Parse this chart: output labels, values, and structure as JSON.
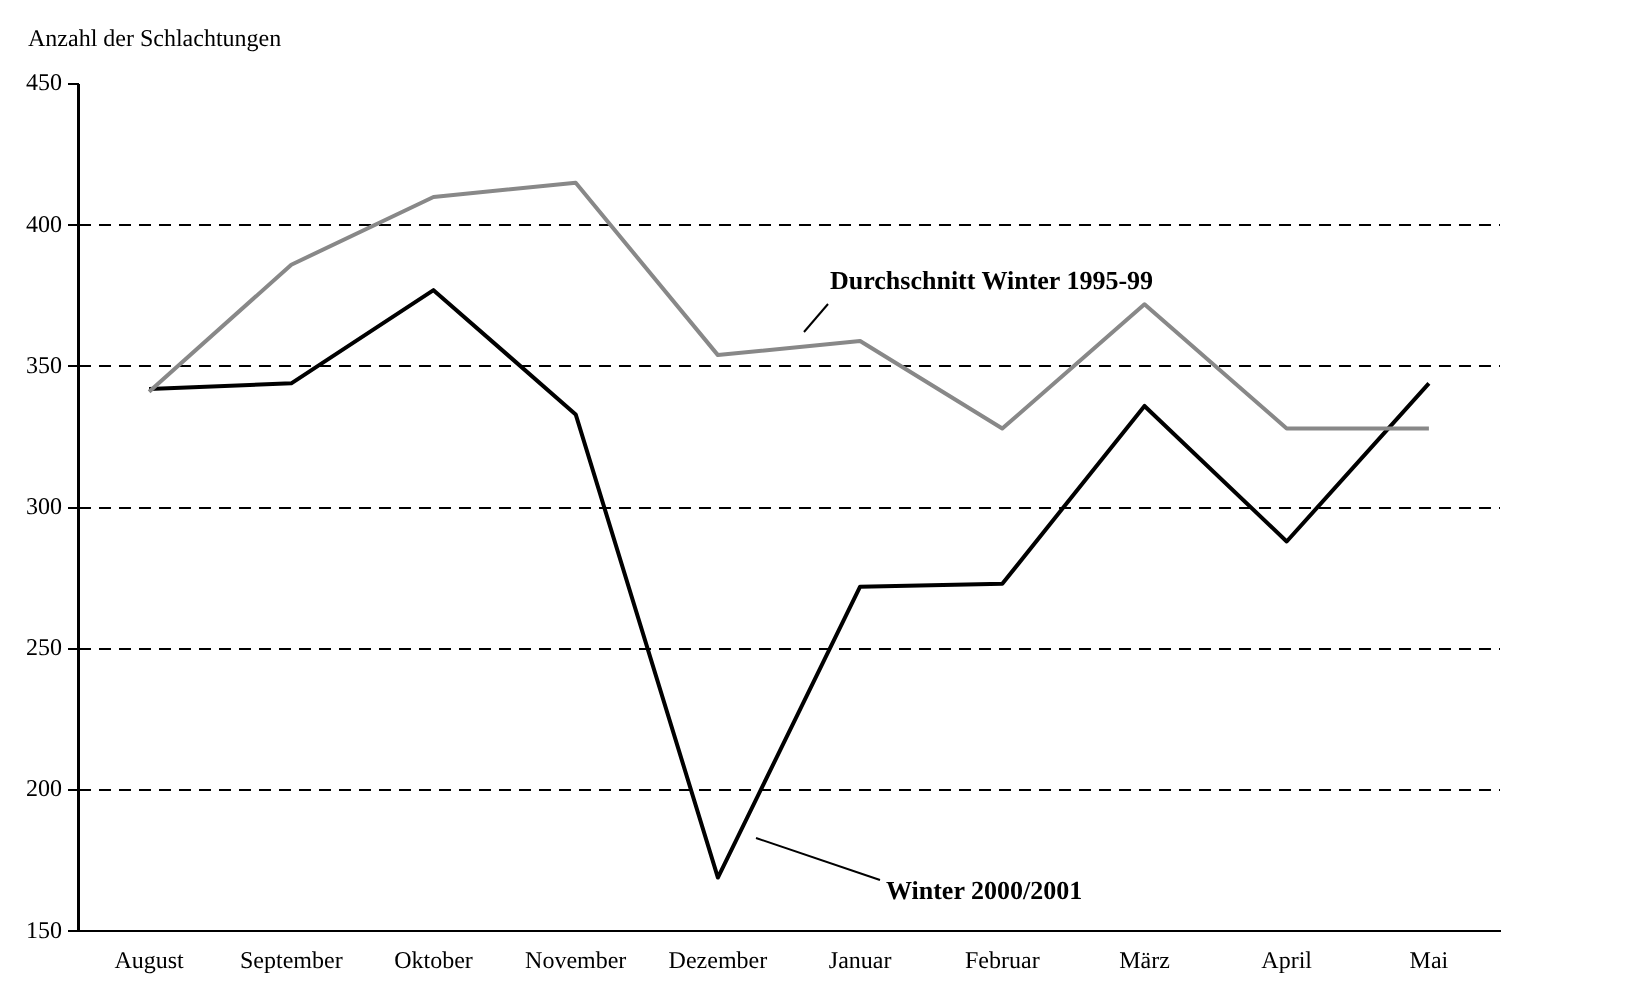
{
  "chart_data": {
    "type": "line",
    "ylabel": "Anzahl der Schlachtungen",
    "categories": [
      "August",
      "September",
      "Oktober",
      "November",
      "Dezember",
      "Januar",
      "Februar",
      "März",
      "April",
      "Mai"
    ],
    "series": [
      {
        "color": "#888888",
        "values": [
          341,
          386,
          410,
          415,
          354,
          359,
          328,
          372,
          328,
          328
        ]
      },
      {
        "color": "#000000",
        "values": [
          342,
          344,
          377,
          333,
          169,
          272,
          273,
          336,
          288,
          344
        ]
      }
    ],
    "ylim": [
      150,
      450
    ],
    "yticks": [
      150,
      200,
      250,
      300,
      350,
      400,
      450
    ],
    "grid": "y",
    "legend": false,
    "marker": "none",
    "line_style": "solid",
    "annotations": [
      "Durchschnitt Winter 1995-99",
      "Winter 2000/2001"
    ]
  }
}
